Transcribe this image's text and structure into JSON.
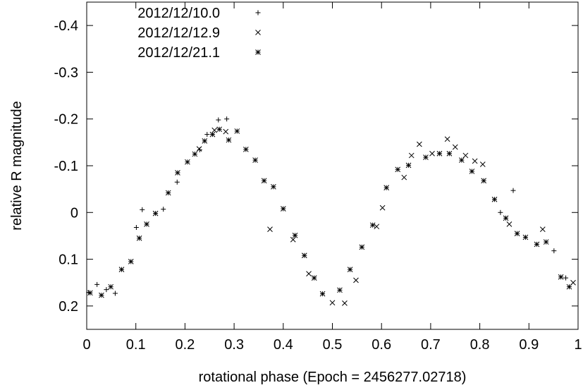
{
  "chart_data": {
    "type": "scatter",
    "xlabel": "rotational phase (Epoch = 2456277.02718)",
    "ylabel": "relative R magnitude",
    "xlim": [
      0,
      1
    ],
    "ylim": [
      0.25,
      -0.45
    ],
    "y_inverted": true,
    "x_ticks": [
      0,
      0.1,
      0.2,
      0.3,
      0.4,
      0.5,
      0.6,
      0.7,
      0.8,
      0.9,
      1
    ],
    "x_tick_labels": [
      "0",
      "0.1",
      "0.2",
      "0.3",
      "0.4",
      "0.5",
      "0.6",
      "0.7",
      "0.8",
      "0.9",
      "1"
    ],
    "y_ticks": [
      -0.4,
      -0.3,
      -0.2,
      -0.1,
      0,
      0.1,
      0.2
    ],
    "y_tick_labels": [
      "-0.4",
      "-0.3",
      "-0.2",
      "-0.1",
      "0",
      "0.1",
      "0.2"
    ],
    "grid": false,
    "legend_position": "top-left",
    "series": [
      {
        "name": "2012/12/10.0",
        "marker": "plus",
        "points": [
          [
            0.004,
            0.171
          ],
          [
            0.021,
            0.154
          ],
          [
            0.04,
            0.165
          ],
          [
            0.058,
            0.173
          ],
          [
            0.101,
            0.032
          ],
          [
            0.113,
            -0.006
          ],
          [
            0.156,
            -0.007
          ],
          [
            0.184,
            -0.065
          ],
          [
            0.23,
            -0.134
          ],
          [
            0.245,
            -0.167
          ],
          [
            0.268,
            -0.198
          ],
          [
            0.285,
            -0.2
          ],
          [
            0.842,
            0.0
          ],
          [
            0.868,
            -0.047
          ],
          [
            0.951,
            0.082
          ],
          [
            0.975,
            0.14
          ]
        ]
      },
      {
        "name": "2012/12/12.9",
        "marker": "x",
        "points": [
          [
            0.229,
            -0.136
          ],
          [
            0.26,
            -0.176
          ],
          [
            0.283,
            -0.173
          ],
          [
            0.373,
            0.036
          ],
          [
            0.42,
            0.058
          ],
          [
            0.452,
            0.131
          ],
          [
            0.5,
            0.193
          ],
          [
            0.525,
            0.194
          ],
          [
            0.548,
            0.145
          ],
          [
            0.59,
            0.03
          ],
          [
            0.602,
            -0.01
          ],
          [
            0.646,
            -0.075
          ],
          [
            0.661,
            -0.122
          ],
          [
            0.677,
            -0.146
          ],
          [
            0.703,
            -0.126
          ],
          [
            0.734,
            -0.157
          ],
          [
            0.75,
            -0.14
          ],
          [
            0.771,
            -0.122
          ],
          [
            0.79,
            -0.11
          ],
          [
            0.806,
            -0.103
          ],
          [
            0.86,
            0.025
          ],
          [
            0.928,
            0.036
          ],
          [
            0.99,
            0.15
          ]
        ]
      },
      {
        "name": "2012/12/21.1",
        "marker": "asterisk",
        "points": [
          [
            0.007,
            0.172
          ],
          [
            0.03,
            0.177
          ],
          [
            0.049,
            0.159
          ],
          [
            0.071,
            0.122
          ],
          [
            0.09,
            0.105
          ],
          [
            0.107,
            0.055
          ],
          [
            0.122,
            0.025
          ],
          [
            0.14,
            0.002
          ],
          [
            0.166,
            -0.042
          ],
          [
            0.185,
            -0.085
          ],
          [
            0.205,
            -0.108
          ],
          [
            0.22,
            -0.125
          ],
          [
            0.24,
            -0.153
          ],
          [
            0.256,
            -0.167
          ],
          [
            0.27,
            -0.178
          ],
          [
            0.289,
            -0.155
          ],
          [
            0.306,
            -0.174
          ],
          [
            0.324,
            -0.135
          ],
          [
            0.343,
            -0.112
          ],
          [
            0.361,
            -0.068
          ],
          [
            0.38,
            -0.055
          ],
          [
            0.4,
            -0.008
          ],
          [
            0.424,
            0.049
          ],
          [
            0.443,
            0.092
          ],
          [
            0.463,
            0.14
          ],
          [
            0.48,
            0.174
          ],
          [
            0.515,
            0.166
          ],
          [
            0.536,
            0.122
          ],
          [
            0.56,
            0.074
          ],
          [
            0.582,
            0.027
          ],
          [
            0.61,
            -0.053
          ],
          [
            0.633,
            -0.092
          ],
          [
            0.655,
            -0.101
          ],
          [
            0.69,
            -0.118
          ],
          [
            0.718,
            -0.126
          ],
          [
            0.738,
            -0.126
          ],
          [
            0.763,
            -0.112
          ],
          [
            0.784,
            -0.088
          ],
          [
            0.808,
            -0.068
          ],
          [
            0.83,
            -0.028
          ],
          [
            0.853,
            0.012
          ],
          [
            0.876,
            0.045
          ],
          [
            0.893,
            0.053
          ],
          [
            0.916,
            0.068
          ],
          [
            0.935,
            0.063
          ],
          [
            0.965,
            0.138
          ],
          [
            0.982,
            0.159
          ]
        ]
      }
    ]
  }
}
